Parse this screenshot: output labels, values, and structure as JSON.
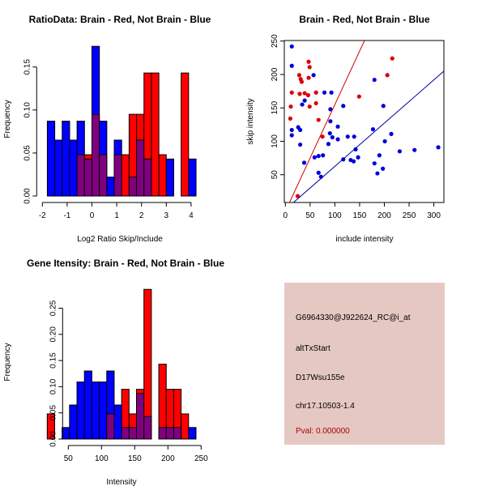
{
  "chart_data": [
    {
      "type": "bar",
      "subtype": "overlaid-histogram",
      "title": "RatioData: Brain - Red, Not Brain - Blue",
      "xlabel": "Log2 Ratio Skip/Include",
      "ylabel": "Frequency",
      "xlim": [
        -2,
        4.3
      ],
      "ylim": [
        0,
        0.18
      ],
      "xticks": [
        "-2",
        "-1",
        "0",
        "1",
        "2",
        "3",
        "4"
      ],
      "yticks": [
        "0.00",
        "0.05",
        "0.10",
        "0.15"
      ],
      "bin_start": -1.8,
      "bin_width": 0.3,
      "series": [
        {
          "name": "Not Brain",
          "color": "#0000ff",
          "values": [
            0.087,
            0.065,
            0.087,
            0.065,
            0.087,
            0.043,
            0.174,
            0.087,
            0.022,
            0.065,
            0,
            0.022,
            0.065,
            0.043,
            0,
            0,
            0.043,
            0,
            0,
            0.043
          ]
        },
        {
          "name": "Brain",
          "color": "#ff0000",
          "values": [
            0,
            0,
            0,
            0,
            0.048,
            0.048,
            0.095,
            0.048,
            0,
            0.048,
            0.048,
            0.095,
            0.095,
            0.143,
            0.143,
            0.048,
            0,
            0,
            0.143,
            0
          ]
        }
      ],
      "overlap_color": "#800080"
    },
    {
      "type": "scatter",
      "title": "Brain - Red, Not Brain - Blue",
      "xlabel": "include intensity",
      "ylabel": "skip intensity",
      "xlim": [
        -1,
        320
      ],
      "ylim": [
        8,
        252
      ],
      "xticks": [
        "0",
        "50",
        "100",
        "150",
        "200",
        "250",
        "300"
      ],
      "yticks": [
        "50",
        "100",
        "150",
        "200",
        "250"
      ],
      "series": [
        {
          "name": "Not Brain",
          "color": "#0000dd",
          "points": [
            [
              13,
              242
            ],
            [
              13,
              213
            ],
            [
              57,
              199
            ],
            [
              39,
              161
            ],
            [
              34,
              155
            ],
            [
              13,
              117
            ],
            [
              26,
              121
            ],
            [
              30,
              117
            ],
            [
              13,
              109
            ],
            [
              30,
              95
            ],
            [
              38,
              68
            ],
            [
              59,
              76
            ],
            [
              67,
              78
            ],
            [
              76,
              79
            ],
            [
              67,
              53
            ],
            [
              72,
              47
            ],
            [
              79,
              173
            ],
            [
              93,
              173
            ],
            [
              91,
              148
            ],
            [
              91,
              130
            ],
            [
              117,
              153
            ],
            [
              106,
              122
            ],
            [
              90,
              112
            ],
            [
              95,
              106
            ],
            [
              87,
              96
            ],
            [
              106,
              103
            ],
            [
              126,
              107
            ],
            [
              139,
              107
            ],
            [
              142,
              88
            ],
            [
              147,
              76
            ],
            [
              117,
              73
            ],
            [
              132,
              72
            ],
            [
              138,
              70
            ],
            [
              180,
              192
            ],
            [
              177,
              118
            ],
            [
              198,
              153
            ],
            [
              201,
              100
            ],
            [
              214,
              111
            ],
            [
              231,
              85
            ],
            [
              261,
              87
            ],
            [
              309,
              91
            ],
            [
              190,
              79
            ],
            [
              180,
              67
            ],
            [
              186,
              52
            ],
            [
              197,
              59
            ]
          ]
        },
        {
          "name": "Brain",
          "color": "#dd0000",
          "points": [
            [
              10,
              134
            ],
            [
              11,
              152
            ],
            [
              13,
              173
            ],
            [
              28,
              199
            ],
            [
              31,
              193
            ],
            [
              33,
              189
            ],
            [
              29,
              171
            ],
            [
              39,
              172
            ],
            [
              46,
              169
            ],
            [
              47,
              195
            ],
            [
              47,
              219
            ],
            [
              49,
              211
            ],
            [
              49,
              152
            ],
            [
              62,
              173
            ],
            [
              62,
              157
            ],
            [
              67,
              132
            ],
            [
              75,
              107
            ],
            [
              149,
              167
            ],
            [
              206,
              199
            ],
            [
              216,
              224
            ],
            [
              25,
              18
            ]
          ]
        }
      ],
      "fit_lines": [
        {
          "name": "Brain fit",
          "color": "#cc0000",
          "slope": 1.6,
          "intercept": -5
        },
        {
          "name": "Not Brain fit",
          "color": "#0000aa",
          "slope": 0.647,
          "intercept": -2.2
        }
      ]
    },
    {
      "type": "bar",
      "subtype": "overlaid-histogram",
      "title": "Gene Itensity: Brain - Red, Not Brain - Blue",
      "xlabel": "Intensity",
      "ylabel": "Frequency",
      "xlim": [
        10,
        250
      ],
      "ylim": [
        0,
        0.3
      ],
      "xticks": [
        "50",
        "100",
        "150",
        "200",
        "250"
      ],
      "yticks": [
        "0.00",
        "0.05",
        "0.10",
        "0.15",
        "0.20",
        "0.25"
      ],
      "bin_start": 18.3,
      "bin_width": 11.2,
      "series": [
        {
          "name": "Not Brain",
          "color": "#0000ff",
          "values": [
            0,
            0,
            0.022,
            0.065,
            0.109,
            0.13,
            0.109,
            0.109,
            0.13,
            0.065,
            0.022,
            0.022,
            0.087,
            0.043,
            0,
            0.022,
            0.022,
            0.022,
            0,
            0.022
          ]
        },
        {
          "name": "Brain",
          "color": "#ff0000",
          "values": [
            0.048,
            0,
            0,
            0,
            0,
            0,
            0,
            0,
            0.048,
            0,
            0.095,
            0.048,
            0.095,
            0.286,
            0,
            0.143,
            0.095,
            0.095,
            0.048,
            0
          ]
        }
      ],
      "overlap_color": "#800080"
    }
  ],
  "info": {
    "probe": "G6964330@J922624_RC@i_at",
    "event_type": "altTxStart",
    "gene": "D17Wsu155e",
    "location": "chr17.10503-1.4",
    "pval": "Pval: 0.000000",
    "pval_color": "#aa0000",
    "background": "#e6c8c2"
  }
}
